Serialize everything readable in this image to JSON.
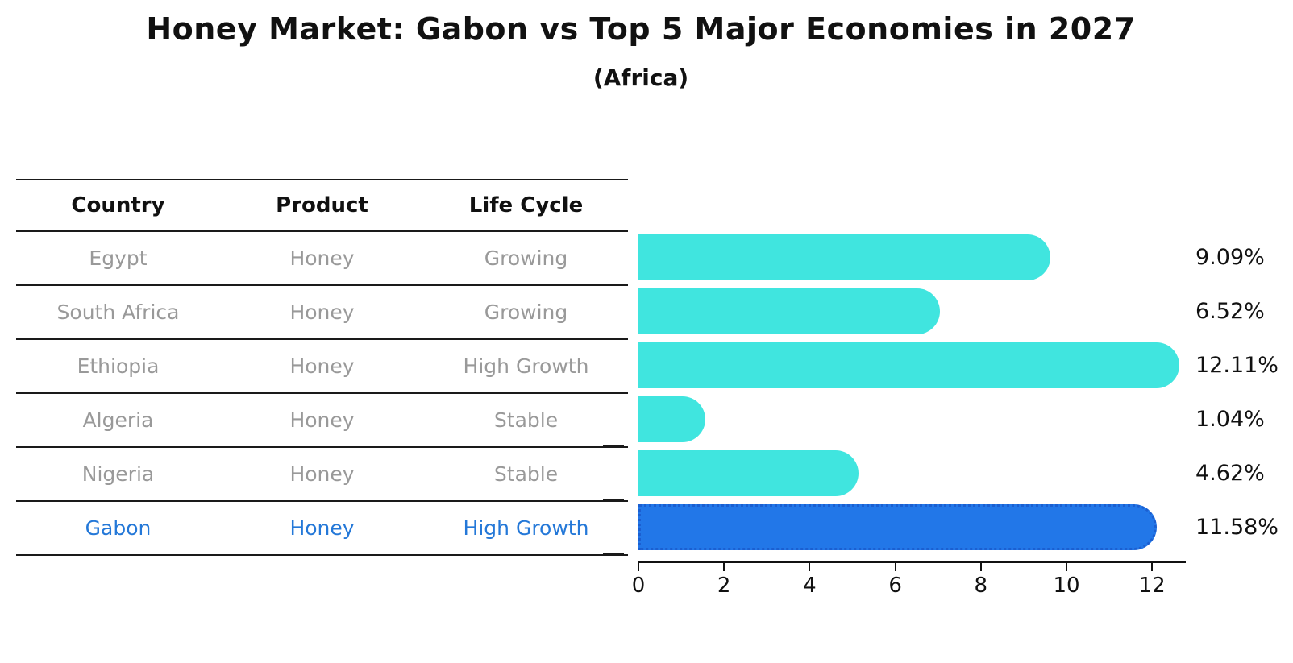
{
  "page": {
    "title": "Honey Market: Gabon vs Top 5 Major Economies in 2027",
    "subtitle": "(Africa)"
  },
  "table": {
    "headers": [
      "Country",
      "Product",
      "Life Cycle"
    ],
    "rows": [
      {
        "country": "Egypt",
        "product": "Honey",
        "life_cycle": "Growing",
        "highlighted": false
      },
      {
        "country": "South Africa",
        "product": "Honey",
        "life_cycle": "Growing",
        "highlighted": false
      },
      {
        "country": "Ethiopia",
        "product": "Honey",
        "life_cycle": "High Growth",
        "highlighted": false
      },
      {
        "country": "Algeria",
        "product": "Honey",
        "life_cycle": "Stable",
        "highlighted": false
      },
      {
        "country": "Nigeria",
        "product": "Honey",
        "life_cycle": "Stable",
        "highlighted": false
      },
      {
        "country": "Gabon",
        "product": "Honey",
        "life_cycle": "High Growth",
        "highlighted": true
      }
    ]
  },
  "chart_data": {
    "type": "bar",
    "orientation": "horizontal",
    "title": "Honey Market: Gabon vs Top 5 Major Economies in 2027",
    "subtitle": "(Africa)",
    "categories": [
      "Egypt",
      "South Africa",
      "Ethiopia",
      "Algeria",
      "Nigeria",
      "Gabon"
    ],
    "values": [
      9.09,
      6.52,
      12.11,
      1.04,
      4.62,
      11.58
    ],
    "value_labels": [
      "9.09%",
      "6.52%",
      "12.11%",
      "1.04%",
      "4.62%",
      "11.58%"
    ],
    "x_ticks": [
      "0",
      "2",
      "4",
      "6",
      "8",
      "10",
      "12"
    ],
    "x_tick_values": [
      0,
      2,
      4,
      6,
      8,
      10,
      12
    ],
    "xlim": [
      0,
      12.8
    ],
    "xlabel": "",
    "ylabel": "",
    "grid": false,
    "legend": false,
    "highlight_index": 5,
    "bar_color": "#40e5df",
    "highlight_color": "#2277e8",
    "highlight_border_color": "#1b5fd1",
    "highlight_text_color": "#2478d8",
    "muted_text_color": "#999999"
  }
}
